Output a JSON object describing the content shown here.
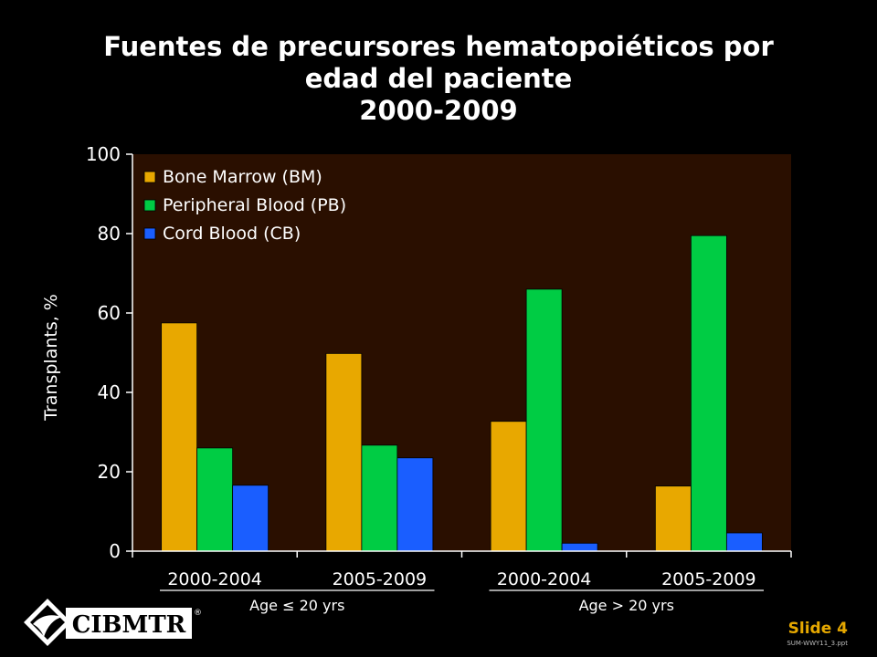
{
  "slide": {
    "title_lines": [
      "Fuentes de precursores hematopoiéticos por",
      "edad del paciente",
      "2000-2009"
    ],
    "logo_text": "CIBMTR",
    "slide_label": "Slide 4",
    "slide_code": "SUM-WWY11_3.ppt"
  },
  "chart_data": {
    "type": "bar",
    "title": "",
    "ylabel": "Transplants, %",
    "xlabel": "",
    "ylim": [
      0,
      100
    ],
    "yticks": [
      0,
      20,
      40,
      60,
      80,
      100
    ],
    "categories": [
      "2000-2004",
      "2005-2009",
      "2000-2004",
      "2005-2009"
    ],
    "groups": [
      {
        "label": "Age ≤ 20 yrs",
        "categories": [
          0,
          1
        ]
      },
      {
        "label": "Age > 20 yrs",
        "categories": [
          2,
          3
        ]
      }
    ],
    "series": [
      {
        "name": "Bone Marrow (BM)",
        "color": "#E8A800",
        "values": [
          57.5,
          49.8,
          32.7,
          16.4
        ]
      },
      {
        "name": "Peripheral Blood (PB)",
        "color": "#00CC44",
        "values": [
          26.0,
          26.7,
          66.0,
          79.5
        ]
      },
      {
        "name": "Cord Blood (CB)",
        "color": "#1A5EFF",
        "values": [
          16.6,
          23.5,
          2.0,
          4.6
        ]
      }
    ],
    "legend_position": "top-left",
    "plot_background": "#2A0F00",
    "grid": false
  }
}
